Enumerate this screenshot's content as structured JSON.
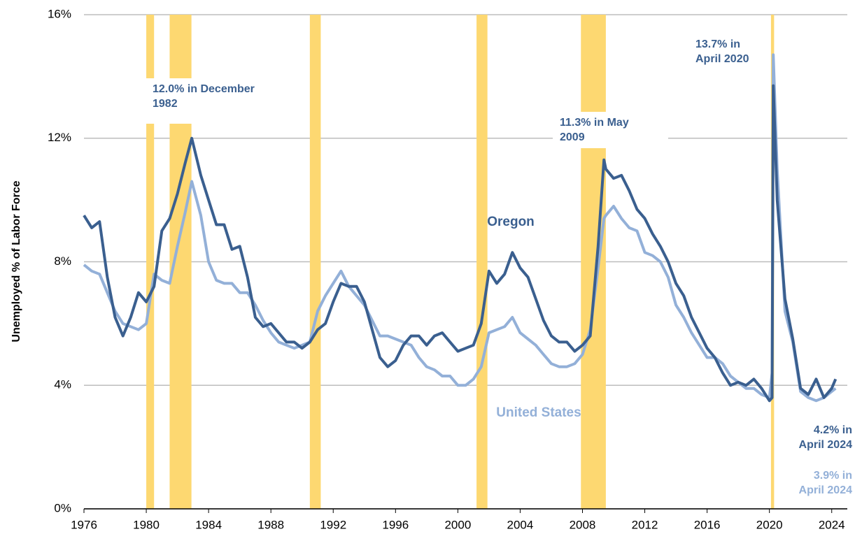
{
  "chart_data": {
    "type": "line",
    "y_label": "Unemployed % of Labor Force",
    "x": [
      1976.0,
      1976.5,
      1977.0,
      1977.5,
      1978.0,
      1978.5,
      1979.0,
      1979.5,
      1980.0,
      1980.5,
      1981.0,
      1981.5,
      1982.0,
      1982.5,
      1982.92,
      1983.5,
      1984.0,
      1984.5,
      1985.0,
      1985.5,
      1986.0,
      1986.5,
      1987.0,
      1987.5,
      1988.0,
      1988.5,
      1989.0,
      1989.5,
      1990.0,
      1990.5,
      1991.0,
      1991.5,
      1992.0,
      1992.5,
      1993.0,
      1993.5,
      1994.0,
      1994.5,
      1995.0,
      1995.5,
      1996.0,
      1996.5,
      1997.0,
      1997.5,
      1998.0,
      1998.5,
      1999.0,
      1999.5,
      2000.0,
      2000.5,
      2001.0,
      2001.5,
      2002.0,
      2002.5,
      2003.0,
      2003.5,
      2004.0,
      2004.5,
      2005.0,
      2005.5,
      2006.0,
      2006.5,
      2007.0,
      2007.5,
      2008.0,
      2008.5,
      2009.0,
      2009.38,
      2009.5,
      2010.0,
      2010.5,
      2011.0,
      2011.5,
      2012.0,
      2012.5,
      2013.0,
      2013.5,
      2014.0,
      2014.5,
      2015.0,
      2015.5,
      2016.0,
      2016.5,
      2017.0,
      2017.5,
      2018.0,
      2018.5,
      2019.0,
      2019.5,
      2020.0,
      2020.17,
      2020.25,
      2020.5,
      2021.0,
      2021.5,
      2022.0,
      2022.5,
      2023.0,
      2023.5,
      2024.0,
      2024.25
    ],
    "series": [
      {
        "name": "Oregon",
        "color": "#3a5f8f",
        "values": [
          9.5,
          9.1,
          9.3,
          7.5,
          6.2,
          5.6,
          6.2,
          7.0,
          6.7,
          7.2,
          9.0,
          9.4,
          10.2,
          11.2,
          12.0,
          10.8,
          10.0,
          9.2,
          9.2,
          8.4,
          8.5,
          7.5,
          6.2,
          5.9,
          6.0,
          5.7,
          5.4,
          5.4,
          5.2,
          5.4,
          5.8,
          6.0,
          6.7,
          7.3,
          7.2,
          7.2,
          6.7,
          5.8,
          4.9,
          4.6,
          4.8,
          5.3,
          5.6,
          5.6,
          5.3,
          5.6,
          5.7,
          5.4,
          5.1,
          5.2,
          5.3,
          6.0,
          7.7,
          7.3,
          7.6,
          8.3,
          7.8,
          7.5,
          6.8,
          6.1,
          5.6,
          5.4,
          5.4,
          5.1,
          5.3,
          5.6,
          8.5,
          11.3,
          11.0,
          10.7,
          10.8,
          10.3,
          9.7,
          9.4,
          8.9,
          8.5,
          8.0,
          7.3,
          6.9,
          6.2,
          5.7,
          5.2,
          4.9,
          4.4,
          4.0,
          4.1,
          4.0,
          4.2,
          3.9,
          3.5,
          3.6,
          13.7,
          10.0,
          6.8,
          5.5,
          3.9,
          3.7,
          4.2,
          3.6,
          3.9,
          4.2
        ]
      },
      {
        "name": "United States",
        "color": "#93b0d8",
        "values": [
          7.9,
          7.7,
          7.6,
          7.0,
          6.4,
          6.0,
          5.9,
          5.8,
          6.0,
          7.6,
          7.4,
          7.3,
          8.5,
          9.6,
          10.6,
          9.5,
          8.0,
          7.4,
          7.3,
          7.3,
          7.0,
          7.0,
          6.6,
          6.1,
          5.7,
          5.4,
          5.3,
          5.2,
          5.3,
          5.4,
          6.4,
          6.9,
          7.3,
          7.7,
          7.2,
          6.9,
          6.6,
          6.1,
          5.6,
          5.6,
          5.5,
          5.4,
          5.3,
          4.9,
          4.6,
          4.5,
          4.3,
          4.3,
          4.0,
          4.0,
          4.2,
          4.6,
          5.7,
          5.8,
          5.9,
          6.2,
          5.7,
          5.5,
          5.3,
          5.0,
          4.7,
          4.6,
          4.6,
          4.7,
          5.0,
          5.8,
          7.8,
          9.4,
          9.5,
          9.8,
          9.4,
          9.1,
          9.0,
          8.3,
          8.2,
          8.0,
          7.5,
          6.6,
          6.2,
          5.7,
          5.3,
          4.9,
          4.9,
          4.7,
          4.3,
          4.1,
          3.9,
          3.9,
          3.7,
          3.6,
          4.4,
          14.7,
          11.0,
          6.4,
          5.4,
          3.8,
          3.6,
          3.5,
          3.6,
          3.8,
          3.9
        ]
      }
    ],
    "recessions": [
      [
        1980.0,
        1980.5
      ],
      [
        1981.5,
        1982.9
      ],
      [
        1990.5,
        1991.2
      ],
      [
        2001.2,
        2001.9
      ],
      [
        2007.9,
        2009.5
      ],
      [
        2020.1,
        2020.3
      ]
    ],
    "recession_color": "#fdd871",
    "annotations": [
      {
        "lines": [
          "12.0% in December",
          "1982"
        ],
        "series": 0
      },
      {
        "lines": [
          "11.3% in May",
          "2009"
        ],
        "series": 0
      },
      {
        "lines": [
          "13.7% in",
          "April 2020"
        ],
        "series": 0
      },
      {
        "lines": [
          "4.2% in",
          "April 2024"
        ],
        "series": 0
      },
      {
        "lines": [
          "3.9% in",
          "April 2024"
        ],
        "series": 1
      }
    ],
    "xlim": [
      1976,
      2025
    ],
    "xticks": [
      1976,
      1980,
      1984,
      1988,
      1992,
      1996,
      2000,
      2004,
      2008,
      2012,
      2016,
      2020,
      2024
    ],
    "ylim": [
      0,
      16
    ],
    "yticks": [
      {
        "value": 0,
        "label": "0%"
      },
      {
        "value": 4,
        "label": "4%"
      },
      {
        "value": 8,
        "label": "8%"
      },
      {
        "value": 12,
        "label": "12%"
      },
      {
        "value": 16,
        "label": "16%"
      }
    ],
    "grid": true
  }
}
